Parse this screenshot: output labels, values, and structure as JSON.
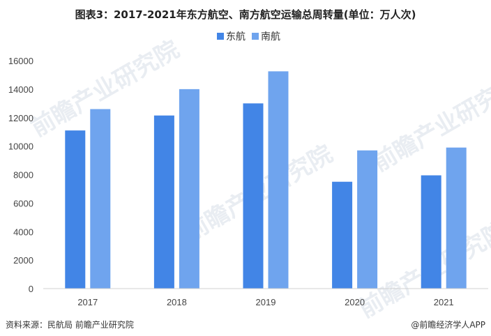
{
  "footer": {
    "source": "资料来源：民航局 前瞻产业研究院",
    "brand": "@前瞻经济学人APP"
  },
  "watermark": {
    "text": "前瞻产业研究院"
  },
  "colors": {
    "east": "#4285e6",
    "south": "#6fa4ee",
    "axis": "#d0d0d0"
  },
  "chart_data": {
    "type": "bar",
    "title": "图表3：2017-2021年东方航空、南方航空运输总周转量(单位：万人次)",
    "categories": [
      "2017",
      "2018",
      "2019",
      "2020",
      "2021"
    ],
    "series": [
      {
        "name": "东航",
        "values": [
          11100,
          12150,
          13000,
          7500,
          7950
        ]
      },
      {
        "name": "南航",
        "values": [
          12600,
          14000,
          15250,
          9700,
          9900
        ]
      }
    ],
    "ylim": [
      0,
      16000
    ],
    "yticks": [
      0,
      2000,
      4000,
      6000,
      8000,
      10000,
      12000,
      14000,
      16000
    ],
    "legend": "top-center",
    "grid": false
  }
}
